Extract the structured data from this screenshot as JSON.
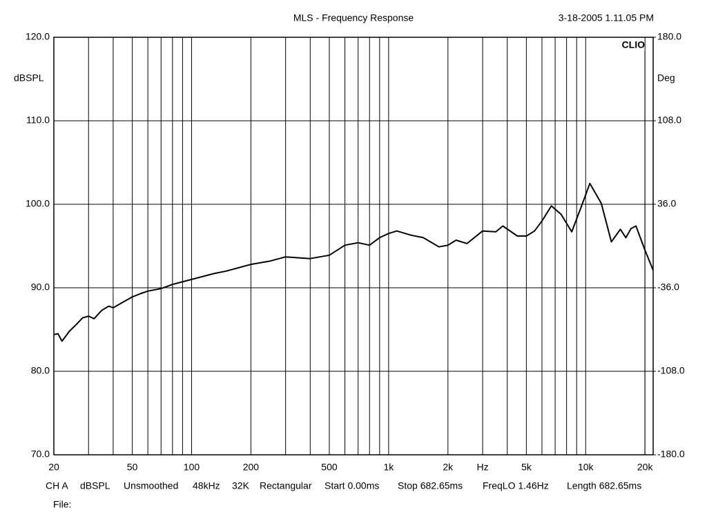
{
  "chart_data": {
    "type": "line",
    "title": "MLS - Frequency Response",
    "timestamp": "3-18-2005 1.11.05 PM",
    "brand": "CLIO",
    "ylabel": "dBSPL",
    "y2label": "Deg",
    "log_x": true,
    "grid": true,
    "xlim": [
      20,
      22000
    ],
    "xticks": [
      20,
      50,
      100,
      200,
      500,
      {
        "value": 1000,
        "label": "1k"
      },
      {
        "value": 2000,
        "label": "2k"
      },
      {
        "value": 3000,
        "label": "Hz"
      },
      {
        "value": 5000,
        "label": "5k"
      },
      {
        "value": 10000,
        "label": "10k"
      },
      {
        "value": 20000,
        "label": "20k"
      }
    ],
    "xgrid_minor": [
      30,
      40,
      60,
      70,
      80,
      90,
      300,
      400,
      600,
      700,
      800,
      900,
      4000,
      6000,
      7000,
      8000,
      9000
    ],
    "ylim": [
      70,
      120
    ],
    "yticks": [
      {
        "value": 70,
        "label": "70.0"
      },
      {
        "value": 80,
        "label": "80.0"
      },
      {
        "value": 90,
        "label": "90.0"
      },
      {
        "value": 100,
        "label": "100.0"
      },
      {
        "value": 110,
        "label": "110.0"
      },
      {
        "value": 120,
        "label": "120.0"
      }
    ],
    "y2lim": [
      -180,
      180
    ],
    "y2ticks": [
      {
        "value": -180,
        "label": "-180.0"
      },
      {
        "value": -108,
        "label": "-108.0"
      },
      {
        "value": -36,
        "label": "-36.0"
      },
      {
        "value": 36,
        "label": "36.0"
      },
      {
        "value": 108,
        "label": "108.0"
      },
      {
        "value": 180,
        "label": "180.0"
      }
    ],
    "series": [
      {
        "color": "#000000",
        "x": [
          20,
          21,
          22,
          24,
          26,
          28,
          30,
          32,
          35,
          38,
          40,
          45,
          50,
          55,
          60,
          70,
          80,
          100,
          130,
          150,
          200,
          250,
          300,
          400,
          500,
          600,
          700,
          800,
          900,
          1000,
          1100,
          1300,
          1500,
          1800,
          2000,
          2200,
          2500,
          3000,
          3500,
          3800,
          4500,
          5000,
          5500,
          6000,
          6700,
          7500,
          8500,
          9500,
          10500,
          12000,
          13500,
          15000,
          16000,
          17000,
          18000,
          20000,
          22000
        ],
        "values": [
          84.4,
          84.5,
          83.6,
          84.8,
          85.6,
          86.4,
          86.6,
          86.3,
          87.3,
          87.8,
          87.6,
          88.3,
          88.9,
          89.3,
          89.6,
          89.9,
          90.4,
          91.0,
          91.7,
          92.0,
          92.8,
          93.2,
          93.7,
          93.5,
          93.9,
          95.1,
          95.4,
          95.1,
          96.0,
          96.5,
          96.8,
          96.3,
          96.0,
          94.9,
          95.1,
          95.7,
          95.3,
          96.8,
          96.7,
          97.4,
          96.2,
          96.2,
          96.8,
          98.0,
          99.8,
          98.8,
          96.7,
          99.7,
          102.5,
          100.1,
          95.5,
          97.0,
          96.0,
          97.1,
          97.4,
          94.5,
          92.1
        ]
      }
    ],
    "info": [
      "CH A",
      "dBSPL",
      "Unsmoothed",
      "48kHz",
      "32K",
      "Rectangular",
      "Start 0.00ms",
      "Stop 682.65ms",
      "FreqLO 1.46Hz",
      "Length 682.65ms"
    ],
    "file_label": "File:"
  }
}
